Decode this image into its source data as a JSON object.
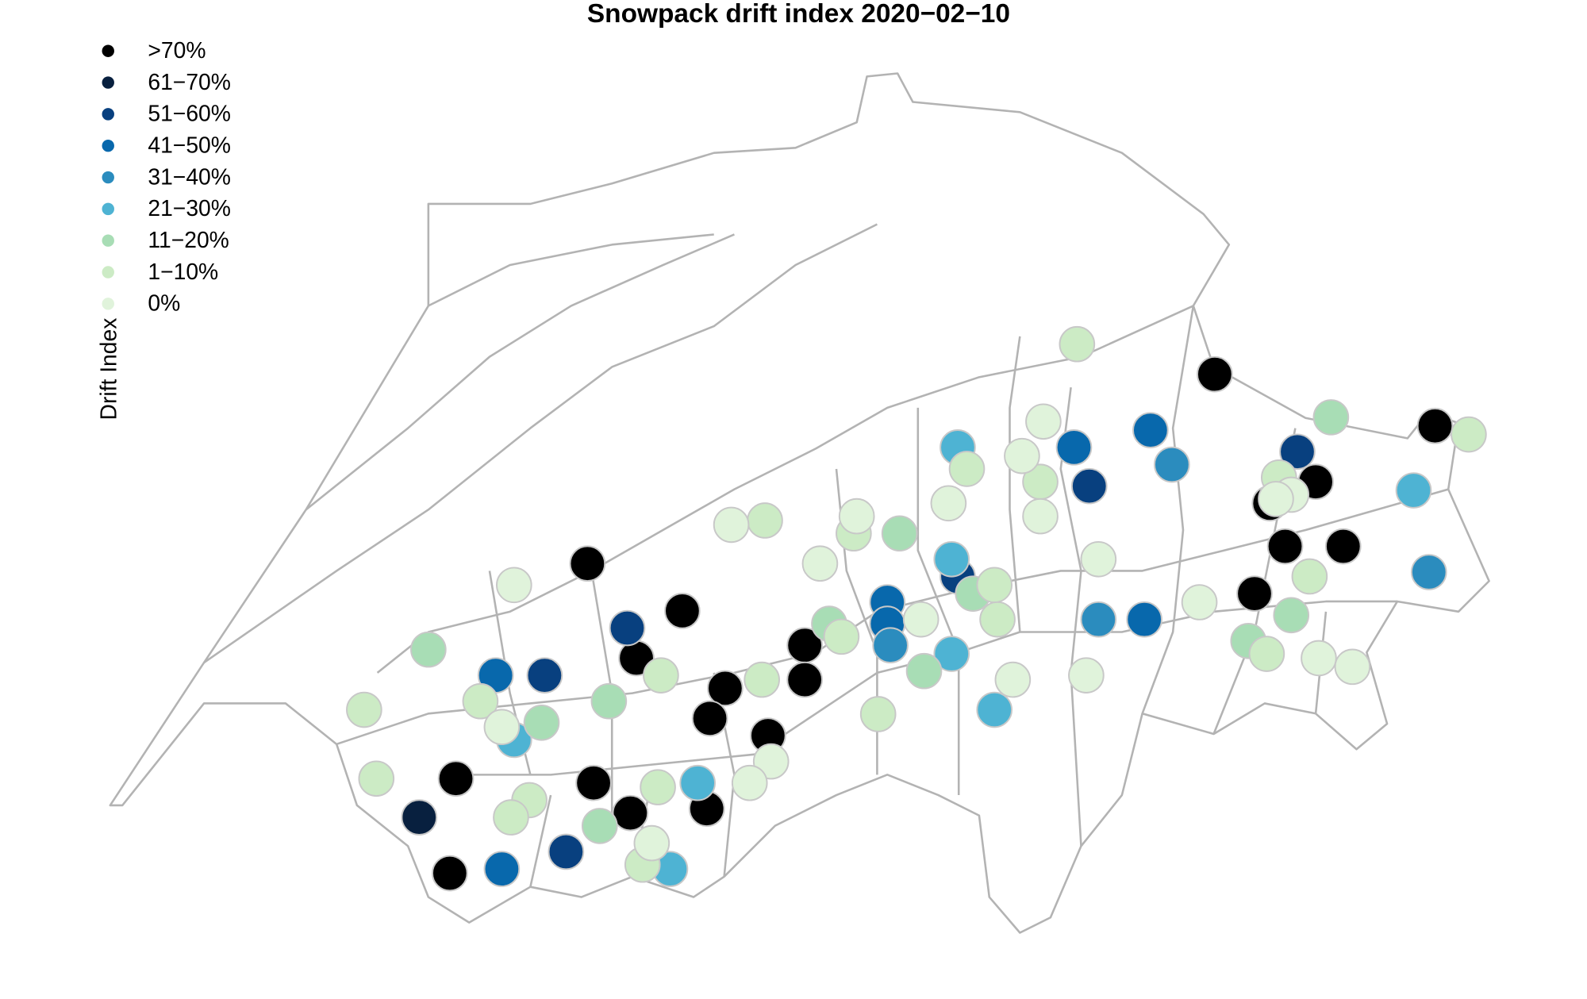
{
  "chart_data": {
    "type": "map",
    "title": "Snowpack drift index 2020−02−10",
    "legend_title": "Drift Index",
    "series": [
      {
        "name": ">70%",
        "color": "#000000",
        "x": [
          9.57,
          10.29,
          9.9,
          9.75,
          9.8,
          9.99,
          7.52,
          7.83,
          9.7,
          8.23,
          7.68,
          8.23,
          7.97,
          7.92,
          8.11,
          7.09,
          7.54,
          7.66,
          7.91,
          7.07
        ],
        "y": [
          47.12,
          47.0,
          46.87,
          46.82,
          46.72,
          46.72,
          46.68,
          46.57,
          46.61,
          46.49,
          46.46,
          46.41,
          46.39,
          46.32,
          46.28,
          46.18,
          46.17,
          46.1,
          46.11,
          45.96
        ]
      },
      {
        "name": "61−70%",
        "color": "#08203f",
        "x": [
          6.97
        ],
        "y": [
          46.09
        ]
      },
      {
        "name": "51−60%",
        "color": "#08407f",
        "x": [
          9.16,
          9.84,
          8.73,
          7.65,
          7.38,
          7.45
        ],
        "y": [
          46.86,
          46.94,
          46.65,
          46.53,
          46.42,
          46.01
        ]
      },
      {
        "name": "41−50%",
        "color": "#0868ac",
        "x": [
          9.36,
          9.11,
          8.5,
          8.5,
          9.34,
          7.22,
          7.24
        ],
        "y": [
          46.99,
          46.95,
          46.59,
          46.54,
          46.55,
          46.42,
          45.97
        ]
      },
      {
        "name": "31−40%",
        "color": "#2b8cbe",
        "x": [
          9.43,
          10.27,
          9.19,
          8.51
        ],
        "y": [
          46.91,
          46.66,
          46.55,
          46.49
        ]
      },
      {
        "name": "21−30%",
        "color": "#4eb3d3",
        "x": [
          8.73,
          10.22,
          8.71,
          8.71,
          8.85,
          7.28,
          7.88,
          7.79
        ],
        "y": [
          46.95,
          46.85,
          46.69,
          46.47,
          46.34,
          46.27,
          46.17,
          45.97
        ]
      },
      {
        "name": "11−20%",
        "color": "#a8ddb5",
        "x": [
          9.95,
          8.54,
          8.78,
          9.82,
          8.31,
          8.62,
          9.68,
          7.0,
          7.59,
          7.37,
          7.56
        ],
        "y": [
          47.02,
          46.75,
          46.61,
          46.56,
          46.54,
          46.43,
          46.5,
          46.48,
          46.36,
          46.31,
          46.07
        ]
      },
      {
        "name": "1−10%",
        "color": "#ccebc5",
        "x": [
          9.12,
          10.4,
          8.76,
          9.0,
          9.78,
          8.39,
          8.1,
          8.85,
          9.88,
          8.86,
          8.35,
          9.74,
          7.76,
          8.09,
          7.17,
          6.79,
          8.47,
          6.83,
          7.75,
          7.33,
          7.27,
          7.7
        ],
        "y": [
          47.19,
          46.98,
          46.9,
          46.87,
          46.88,
          46.75,
          46.78,
          46.63,
          46.65,
          46.55,
          46.51,
          46.47,
          46.42,
          46.41,
          46.36,
          46.34,
          46.33,
          46.18,
          46.16,
          46.13,
          46.09,
          45.98
        ]
      },
      {
        "name": "0%",
        "color": "#e0f3db",
        "x": [
          9.01,
          8.94,
          9.82,
          9.77,
          8.7,
          9.0,
          8.4,
          7.99,
          9.19,
          8.28,
          7.28,
          9.52,
          8.61,
          9.91,
          10.02,
          8.91,
          9.15,
          7.24,
          8.12,
          8.05,
          7.73
        ],
        "y": [
          47.01,
          46.93,
          46.84,
          46.83,
          46.82,
          46.79,
          46.79,
          46.77,
          46.69,
          46.68,
          46.63,
          46.59,
          46.55,
          46.46,
          46.44,
          46.41,
          46.42,
          46.3,
          46.22,
          46.17,
          46.03
        ]
      }
    ]
  }
}
